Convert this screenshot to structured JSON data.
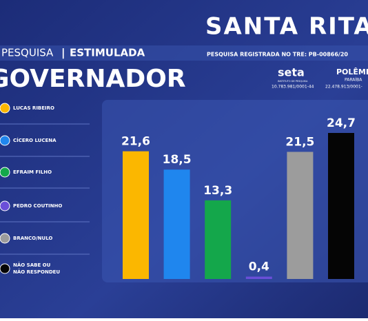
{
  "header": {
    "place": "SANTA RITA",
    "survey": "PESQUISA",
    "separator": "|",
    "kind": "ESTIMULADA",
    "registration": "PESQUISA REGISTRADA NO TRE: PB-00866/20",
    "office": "GOVERNADOR",
    "institute": "seta",
    "institute_sub": "INSTITUTO DE PESQUISA",
    "institute_id": "10.783.981/0001-44",
    "outlet": "POLÊMICA",
    "outlet_sub": "PARAÍBA",
    "outlet_id": "22.478.913/0001-"
  },
  "chart_data": {
    "type": "bar",
    "categories": [
      "LUCAS RIBEIRO",
      "CÍCERO LUCENA",
      "EFRAIM FILHO",
      "PEDRO COUTINHO",
      "BRANCO/NULO",
      "NÃO SABE OU NÃO RESPONDEU"
    ],
    "values": [
      21.6,
      18.5,
      13.3,
      0.4,
      21.5,
      24.7
    ],
    "value_labels": [
      "21,6",
      "18,5",
      "13,3",
      "0,4",
      "21,5",
      "24,7"
    ],
    "colors": [
      "#fbb700",
      "#1f86ee",
      "#14a74b",
      "#6a4fd8",
      "#9c9c9c",
      "#050505"
    ]
  }
}
